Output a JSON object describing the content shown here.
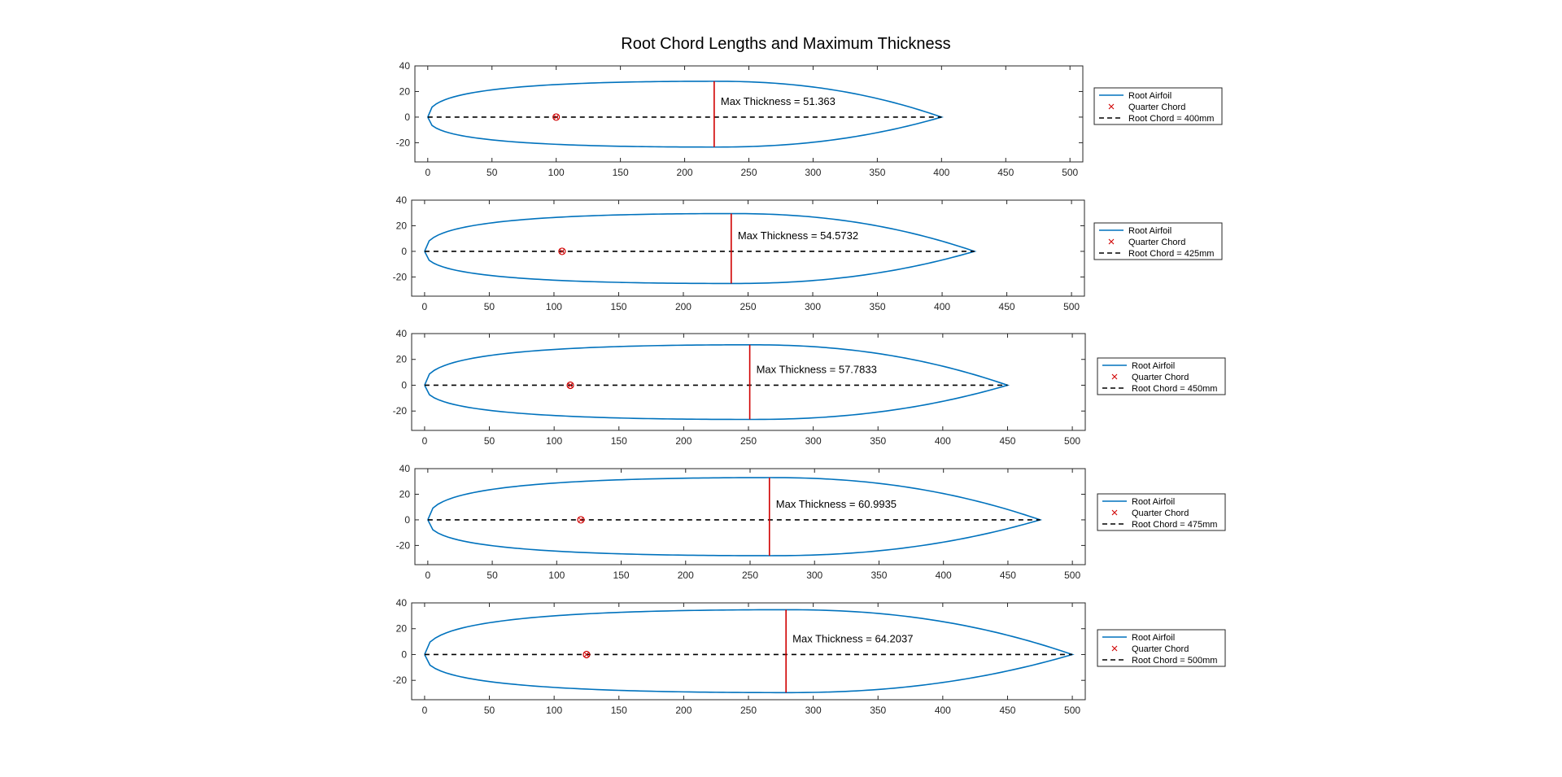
{
  "figure": {
    "title": "Root Chord Lengths and Maximum Thickness"
  },
  "legend_labels": {
    "airfoil": "Root Airfoil",
    "quarter": "Quarter Chord"
  },
  "colors": {
    "airfoil": "#0072BD",
    "max_thickness": "#D00000",
    "chord": "#000000",
    "quarter": "#D00000",
    "axes": "#262626"
  },
  "chart_data": [
    {
      "type": "line",
      "chord": 400,
      "quarter_chord_x": 100,
      "max_thickness": 51.363,
      "max_x": 223,
      "upper": 28,
      "lower": -23.4,
      "annotation": "Max Thickness = 51.363",
      "legend_chord": "Root Chord = 400mm",
      "xlim": [
        -10,
        510
      ],
      "ylim": [
        -35,
        40
      ],
      "xticks": [
        "0",
        "50",
        "100",
        "150",
        "200",
        "250",
        "300",
        "350",
        "400",
        "450",
        "500"
      ],
      "yticks": [
        "40",
        "20",
        "0",
        "-20"
      ]
    },
    {
      "type": "line",
      "chord": 425,
      "quarter_chord_x": 106.25,
      "max_thickness": 54.5732,
      "max_x": 237,
      "upper": 29.5,
      "lower": -25.1,
      "annotation": "Max Thickness = 54.5732",
      "legend_chord": "Root Chord = 425mm",
      "xlim": [
        -10,
        510
      ],
      "ylim": [
        -35,
        40
      ],
      "xticks": [
        "0",
        "50",
        "100",
        "150",
        "200",
        "250",
        "300",
        "350",
        "400",
        "450",
        "500"
      ],
      "yticks": [
        "40",
        "20",
        "0",
        "-20"
      ]
    },
    {
      "type": "line",
      "chord": 450,
      "quarter_chord_x": 112.5,
      "max_thickness": 57.7833,
      "max_x": 251,
      "upper": 31.3,
      "lower": -26.5,
      "annotation": "Max Thickness = 57.7833",
      "legend_chord": "Root Chord = 450mm",
      "xlim": [
        -10,
        510
      ],
      "ylim": [
        -35,
        40
      ],
      "xticks": [
        "0",
        "50",
        "100",
        "150",
        "200",
        "250",
        "300",
        "350",
        "400",
        "450",
        "500"
      ],
      "yticks": [
        "40",
        "20",
        "0",
        "-20"
      ]
    },
    {
      "type": "line",
      "chord": 475,
      "quarter_chord_x": 118.75,
      "max_thickness": 60.9935,
      "max_x": 265,
      "upper": 33,
      "lower": -28,
      "annotation": "Max Thickness = 60.9935",
      "legend_chord": "Root Chord = 475mm",
      "xlim": [
        -10,
        510
      ],
      "ylim": [
        -35,
        40
      ],
      "xticks": [
        "0",
        "50",
        "100",
        "150",
        "200",
        "250",
        "300",
        "350",
        "400",
        "450",
        "500"
      ],
      "yticks": [
        "40",
        "20",
        "0",
        "-20"
      ]
    },
    {
      "type": "line",
      "chord": 500,
      "quarter_chord_x": 125,
      "max_thickness": 64.2037,
      "max_x": 279,
      "upper": 34.7,
      "lower": -29.5,
      "annotation": "Max Thickness = 64.2037",
      "legend_chord": "Root Chord = 500mm",
      "xlim": [
        -10,
        510
      ],
      "ylim": [
        -35,
        40
      ],
      "xticks": [
        "0",
        "50",
        "100",
        "150",
        "200",
        "250",
        "300",
        "350",
        "400",
        "450",
        "500"
      ],
      "yticks": [
        "40",
        "20",
        "0",
        "-20"
      ]
    }
  ]
}
